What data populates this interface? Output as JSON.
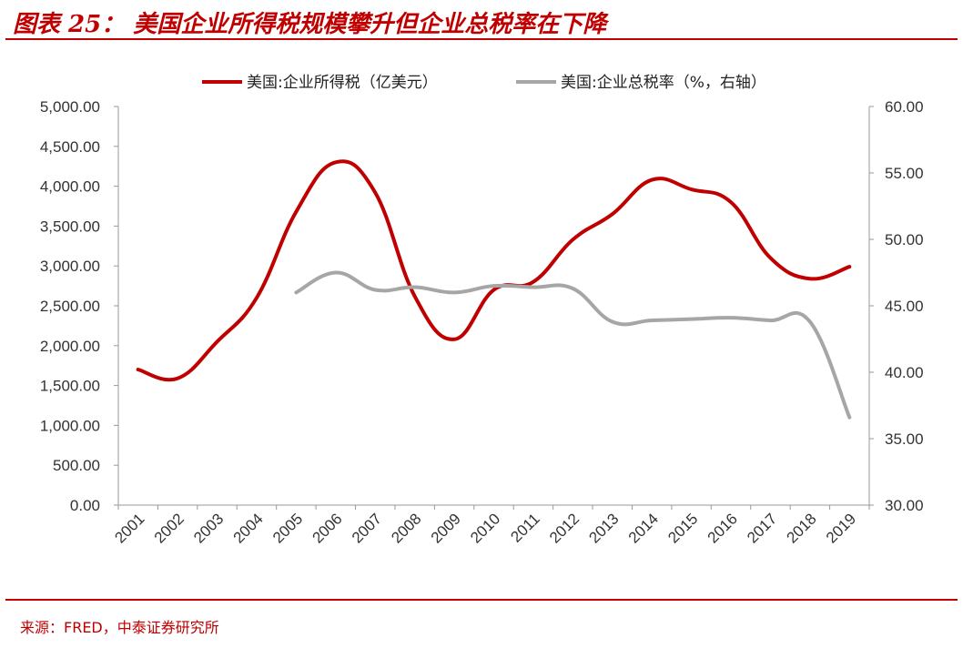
{
  "figure": {
    "title": "图表 25： 美国企业所得税规模攀升但企业总税率在下降",
    "source": "来源：FRED，中泰证券研究所"
  },
  "colors": {
    "accent": "#c00000",
    "series1": "#c00000",
    "series2": "#a6a6a6",
    "axis": "#999999"
  },
  "chart_data": {
    "type": "line",
    "x": [
      "2001",
      "2002",
      "2003",
      "2004",
      "2005",
      "2006",
      "2007",
      "2008",
      "2009",
      "2010",
      "2011",
      "2012",
      "2013",
      "2014",
      "2015",
      "2016",
      "2017",
      "2018",
      "2019"
    ],
    "series": [
      {
        "name": "美国:企业所得税（亿美元）",
        "axis": "left",
        "values": [
          1700,
          1590,
          2050,
          2600,
          3680,
          4300,
          3920,
          2620,
          2080,
          2700,
          2800,
          3330,
          3650,
          4080,
          3960,
          3800,
          3100,
          2840,
          2990
        ]
      },
      {
        "name": "美国:企业总税率（%，右轴）",
        "axis": "right",
        "values": [
          null,
          null,
          null,
          null,
          46.0,
          47.5,
          46.2,
          46.4,
          46.0,
          46.5,
          46.4,
          46.3,
          43.8,
          43.9,
          44.0,
          44.1,
          43.9,
          43.8,
          36.6
        ]
      }
    ],
    "y_left": {
      "lim": [
        0,
        5000
      ],
      "ticks": [
        "0.00",
        "500.00",
        "1,000.00",
        "1,500.00",
        "2,000.00",
        "2,500.00",
        "3,000.00",
        "3,500.00",
        "4,000.00",
        "4,500.00",
        "5,000.00"
      ]
    },
    "y_right": {
      "lim": [
        30,
        60
      ],
      "ticks": [
        "30.00",
        "35.00",
        "40.00",
        "45.00",
        "50.00",
        "55.00",
        "60.00"
      ]
    },
    "grid": false,
    "legend": "top-center"
  }
}
